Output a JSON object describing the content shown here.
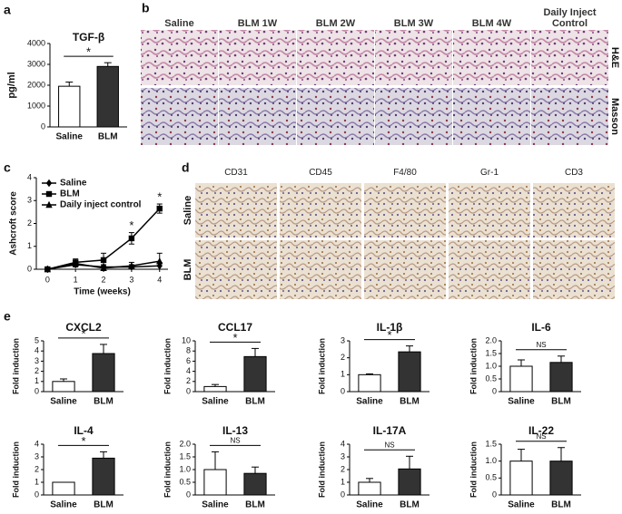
{
  "panel_labels": [
    "a",
    "b",
    "c",
    "d",
    "e"
  ],
  "histology": {
    "columns": [
      "Saline",
      "BLM 1W",
      "BLM 2W",
      "BLM 3W",
      "BLM 4W",
      "Daily Inject Control"
    ],
    "rows": [
      "H&E",
      "Masson"
    ]
  },
  "ihc": {
    "columns": [
      "CD31",
      "CD45",
      "F4/80",
      "Gr-1",
      "CD3"
    ],
    "rows": [
      "Saline",
      "BLM"
    ]
  },
  "chart_data": [
    {
      "type": "bar",
      "title": "TGF-β",
      "ylabel": "pg/ml",
      "categories": [
        "Saline",
        "BLM"
      ],
      "values": [
        1950,
        2900
      ],
      "errors": [
        200,
        180
      ],
      "colors": [
        "#ffffff",
        "#333333"
      ],
      "ylim": [
        0,
        4000
      ],
      "yticks": [
        0,
        1000,
        2000,
        3000,
        4000
      ],
      "significance": "*"
    },
    {
      "type": "line",
      "xlabel": "Time (weeks)",
      "ylabel": "Ashcroft score",
      "x": [
        0,
        1,
        2,
        3,
        4
      ],
      "xlim": [
        -0.4,
        4.3
      ],
      "xticks": [
        0,
        1,
        2,
        3,
        4
      ],
      "ylim": [
        0,
        4
      ],
      "yticks": [
        0,
        1,
        2,
        3,
        4
      ],
      "legend": "upper left",
      "series": [
        {
          "name": "Saline",
          "color": "#000000",
          "marker": "diamond",
          "values": [
            0,
            0.2,
            0.1,
            0.1,
            0.15
          ],
          "errors": [
            0.05,
            0.1,
            0.1,
            0.1,
            0.15
          ]
        },
        {
          "name": "BLM",
          "color": "#000000",
          "marker": "square",
          "values": [
            0,
            0.3,
            0.4,
            1.35,
            2.65
          ],
          "errors": [
            0.05,
            0.15,
            0.3,
            0.25,
            0.2
          ],
          "significance": [
            null,
            null,
            null,
            "*",
            "*"
          ]
        },
        {
          "name": "Daily inject control",
          "color": "#000000",
          "marker": "triangle",
          "values": [
            0,
            0.25,
            0.05,
            0.15,
            0.35
          ],
          "errors": [
            0.05,
            0.1,
            0.1,
            0.15,
            0.35
          ]
        }
      ]
    },
    {
      "type": "bar",
      "title": "CXCL2",
      "ylabel": "Fold induction",
      "categories": [
        "Saline",
        "BLM"
      ],
      "values": [
        1,
        3.75
      ],
      "errors": [
        0.25,
        0.9
      ],
      "colors": [
        "#ffffff",
        "#333333"
      ],
      "ylim": [
        0,
        5
      ],
      "yticks": [
        0,
        1,
        2,
        3,
        4,
        5
      ],
      "significance": "*"
    },
    {
      "type": "bar",
      "title": "CCL17",
      "ylabel": "Fold induction",
      "categories": [
        "Saline",
        "BLM"
      ],
      "values": [
        1,
        6.9
      ],
      "errors": [
        0.4,
        1.6
      ],
      "colors": [
        "#ffffff",
        "#333333"
      ],
      "ylim": [
        0,
        10
      ],
      "yticks": [
        0,
        2,
        4,
        6,
        8,
        10
      ],
      "significance": "*"
    },
    {
      "type": "bar",
      "title": "IL-1β",
      "ylabel": "Fold induction",
      "categories": [
        "Saline",
        "BLM"
      ],
      "values": [
        1,
        2.35
      ],
      "errors": [
        0.05,
        0.35
      ],
      "colors": [
        "#ffffff",
        "#333333"
      ],
      "ylim": [
        0,
        3
      ],
      "yticks": [
        0,
        1,
        2,
        3
      ],
      "significance": "*"
    },
    {
      "type": "bar",
      "title": "IL-6",
      "ylabel": "Fold induction",
      "categories": [
        "Saline",
        "BLM"
      ],
      "values": [
        1,
        1.15
      ],
      "errors": [
        0.25,
        0.25
      ],
      "colors": [
        "#ffffff",
        "#333333"
      ],
      "ylim": [
        0,
        2
      ],
      "yticks": [
        0,
        0.5,
        {
          "value": 1,
          "label": "1.0"
        },
        1.5,
        {
          "value": 2,
          "label": "2.0"
        }
      ],
      "significance": "NS"
    },
    {
      "type": "bar",
      "title": "IL-4",
      "ylabel": "Fold induction",
      "categories": [
        "Saline",
        "BLM"
      ],
      "values": [
        1,
        2.9
      ],
      "errors": [
        0,
        0.5
      ],
      "colors": [
        "#ffffff",
        "#333333"
      ],
      "ylim": [
        0,
        4
      ],
      "yticks": [
        0,
        1,
        2,
        3,
        4
      ],
      "significance": "*"
    },
    {
      "type": "bar",
      "title": "IL-13",
      "ylabel": "Fold induction",
      "categories": [
        "Saline",
        "BLM"
      ],
      "values": [
        1,
        0.85
      ],
      "errors": [
        0.7,
        0.25
      ],
      "colors": [
        "#ffffff",
        "#333333"
      ],
      "ylim": [
        0,
        2
      ],
      "yticks": [
        0,
        0.5,
        {
          "value": 1,
          "label": "1.0"
        },
        1.5,
        {
          "value": 2,
          "label": "2.0"
        }
      ],
      "significance": "NS"
    },
    {
      "type": "bar",
      "title": "IL-17A",
      "ylabel": "Fold induction",
      "categories": [
        "Saline",
        "BLM"
      ],
      "values": [
        1,
        2.05
      ],
      "errors": [
        0.3,
        1.0
      ],
      "colors": [
        "#ffffff",
        "#333333"
      ],
      "ylim": [
        0,
        4
      ],
      "yticks": [
        0,
        1,
        2,
        3,
        4
      ],
      "significance": "NS"
    },
    {
      "type": "bar",
      "title": "IL-22",
      "ylabel": "Fold induction",
      "categories": [
        "Saline",
        "BLM"
      ],
      "values": [
        1,
        1
      ],
      "errors": [
        0.35,
        0.4
      ],
      "colors": [
        "#ffffff",
        "#333333"
      ],
      "ylim": [
        0,
        1.5
      ],
      "yticks": [
        0,
        0.5,
        {
          "value": 1,
          "label": "1.0"
        },
        1.5
      ],
      "significance": "NS"
    }
  ]
}
